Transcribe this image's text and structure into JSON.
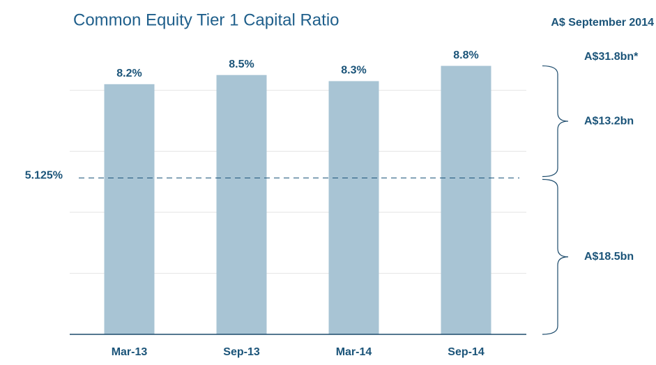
{
  "chart_data": {
    "type": "bar",
    "title": "Common Equity Tier 1 Capital Ratio",
    "categories": [
      "Mar-13",
      "Sep-13",
      "Mar-14",
      "Sep-14"
    ],
    "values": [
      8.2,
      8.5,
      8.3,
      8.8
    ],
    "value_labels": [
      "8.2%",
      "8.5%",
      "8.3%",
      "8.8%"
    ],
    "color": "#a8c4d4",
    "ylim": [
      0,
      10
    ],
    "yticks": [
      2,
      4,
      6,
      8
    ],
    "grid": true,
    "reference_line": {
      "value": 5.125,
      "label": "5.125%"
    },
    "annotations": {
      "heading": "A$ September 2014",
      "total": "A$31.8bn*",
      "upper": "A$13.2bn",
      "lower": "A$18.5bn"
    }
  }
}
